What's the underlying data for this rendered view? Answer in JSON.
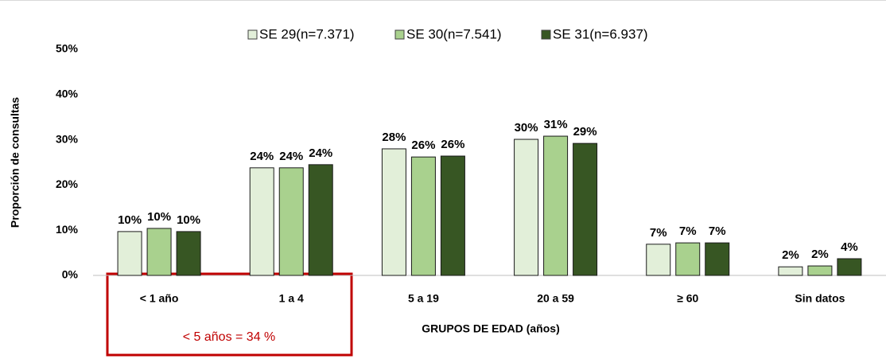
{
  "chart_data": {
    "type": "bar",
    "y_label": "Proporción de consultas",
    "x_label": "GRUPOS DE EDAD (años)",
    "annotation": "< 5 años = 34 %",
    "categories": [
      "< 1 año",
      "1 a 4",
      "5 a 19",
      "20 a 59",
      "≥ 60",
      "Sin datos"
    ],
    "series": [
      {
        "name": "SE 29(n=7.371)",
        "color": "#e2efd9",
        "values": [
          9.7,
          23.8,
          28.0,
          30.1,
          6.9,
          1.9
        ],
        "value_labels": [
          "10%",
          "24%",
          "28%",
          "30%",
          "7%",
          "2%"
        ]
      },
      {
        "name": "SE 30(n=7.541)",
        "color": "#a9d18e",
        "values": [
          10.4,
          23.8,
          26.2,
          30.8,
          7.2,
          2.1
        ],
        "value_labels": [
          "10%",
          "24%",
          "26%",
          "31%",
          "7%",
          "2%"
        ]
      },
      {
        "name": "SE 31(n=6.937)",
        "color": "#375623",
        "values": [
          9.7,
          24.5,
          26.4,
          29.2,
          7.2,
          3.7
        ],
        "value_labels": [
          "10%",
          "24%",
          "26%",
          "29%",
          "7%",
          "4%"
        ]
      }
    ],
    "ylim": [
      0,
      50
    ],
    "yticks": [
      {
        "value": 0,
        "label": "0%"
      },
      {
        "value": 10,
        "label": "10%"
      },
      {
        "value": 20,
        "label": "20%"
      },
      {
        "value": 30,
        "label": "30%"
      },
      {
        "value": 40,
        "label": "40%"
      },
      {
        "value": 50,
        "label": "50%"
      }
    ],
    "grid": false,
    "legend": "top"
  }
}
